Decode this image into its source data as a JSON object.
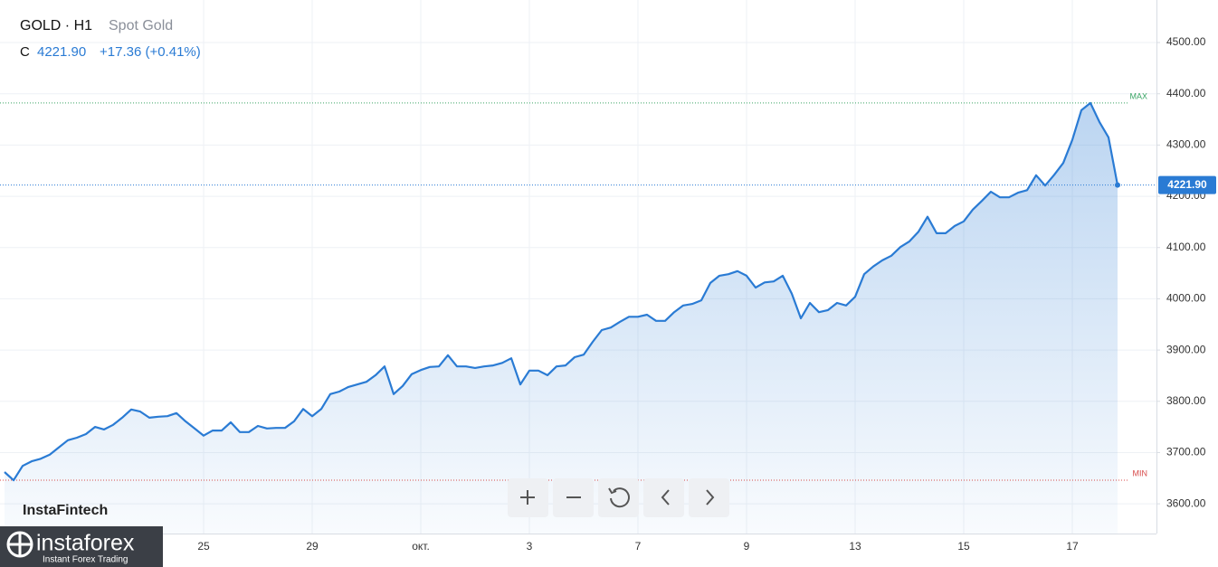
{
  "header": {
    "symbol": "GOLD · H1",
    "name": "Spot Gold"
  },
  "quote": {
    "label": "C",
    "close": "4221.90",
    "change": "+17.36 (+0.41%)"
  },
  "brand": {
    "watermark": "InstaFintech",
    "logo": "instaforex",
    "tagline": "Instant Forex Trading"
  },
  "chart_data": {
    "type": "area",
    "color": "#2a7bd4",
    "grid": true,
    "max_label": "MAX",
    "min_label": "MIN",
    "ylim": [
      3542,
      4583
    ],
    "yticks": [
      {
        "value": 3600,
        "label": "3600.00"
      },
      {
        "value": 3700,
        "label": "3700.00"
      },
      {
        "value": 3800,
        "label": "3800.00"
      },
      {
        "value": 3900,
        "label": "3900.00"
      },
      {
        "value": 4000,
        "label": "4000.00"
      },
      {
        "value": 4100,
        "label": "4100.00"
      },
      {
        "value": 4200,
        "label": "4200.00"
      },
      {
        "value": 4300,
        "label": "4300.00"
      },
      {
        "value": 4400,
        "label": "4400.00"
      },
      {
        "value": 4500,
        "label": "4500.00"
      }
    ],
    "categories": [
      null,
      null,
      null,
      null,
      null,
      null,
      null,
      null,
      null,
      null,
      null,
      null,
      null,
      null,
      null,
      null,
      null,
      null,
      null,
      null,
      null,
      null,
      "25",
      null,
      null,
      null,
      null,
      null,
      null,
      null,
      null,
      null,
      null,
      null,
      "29",
      null,
      null,
      null,
      null,
      null,
      null,
      null,
      null,
      null,
      null,
      null,
      "окт.",
      null,
      null,
      null,
      null,
      null,
      null,
      null,
      null,
      null,
      null,
      null,
      "3",
      null,
      null,
      null,
      null,
      null,
      null,
      null,
      null,
      null,
      null,
      null,
      "7",
      null,
      null,
      null,
      null,
      null,
      null,
      null,
      null,
      null,
      null,
      null,
      "9",
      null,
      null,
      null,
      null,
      null,
      null,
      null,
      null,
      null,
      null,
      null,
      "13",
      null,
      null,
      null,
      null,
      null,
      null,
      null,
      null,
      null,
      null,
      null,
      "15",
      null,
      null,
      null,
      null,
      null,
      null,
      null,
      null,
      null,
      null,
      null,
      "17",
      null,
      null,
      null,
      null,
      null
    ],
    "values": [
      3662,
      3646,
      3674,
      3683,
      3688,
      3696,
      3710,
      3724,
      3729,
      3736,
      3750,
      3745,
      3754,
      3768,
      3784,
      3780,
      3768,
      3770,
      3771,
      3777,
      3761,
      3747,
      3733,
      3743,
      3743,
      3759,
      3740,
      3740,
      3752,
      3747,
      3748,
      3748,
      3761,
      3785,
      3771,
      3785,
      3814,
      3819,
      3828,
      3833,
      3838,
      3851,
      3868,
      3814,
      3830,
      3853,
      3861,
      3867,
      3868,
      3890,
      3868,
      3868,
      3865,
      3868,
      3870,
      3875,
      3884,
      3833,
      3860,
      3860,
      3851,
      3868,
      3870,
      3886,
      3891,
      3916,
      3939,
      3944,
      3955,
      3965,
      3965,
      3969,
      3957,
      3957,
      3974,
      3987,
      3990,
      3997,
      4031,
      4045,
      4048,
      4054,
      4045,
      4022,
      4032,
      4034,
      4045,
      4010,
      3962,
      3992,
      3974,
      3978,
      3992,
      3987,
      4004,
      4048,
      4063,
      4075,
      4084,
      4101,
      4112,
      4131,
      4160,
      4128,
      4128,
      4142,
      4151,
      4174,
      4191,
      4209,
      4198,
      4198,
      4207,
      4212,
      4241,
      4221,
      4242,
      4265,
      4310,
      4368,
      4382,
      4345,
      4315,
      4221.9
    ]
  }
}
